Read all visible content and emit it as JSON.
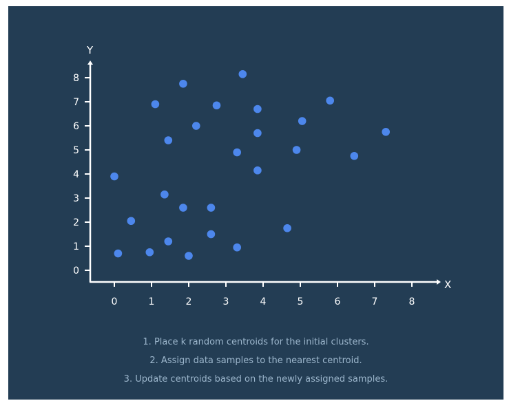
{
  "chart_data": {
    "type": "scatter",
    "xlabel": "X",
    "ylabel": "Y",
    "xlim": [
      -0.6,
      8.6
    ],
    "ylim": [
      -0.3,
      8.3
    ],
    "x_ticks": [
      "0",
      "1",
      "2",
      "3",
      "4",
      "5",
      "6",
      "7",
      "8"
    ],
    "y_ticks": [
      "0",
      "1",
      "2",
      "3",
      "4",
      "5",
      "6",
      "7",
      "8"
    ],
    "grid": false,
    "point_color": "#4d87ec",
    "background_color": "#233d54",
    "axis_color": "#ffffff",
    "points": [
      {
        "x": 0.0,
        "y": 3.9
      },
      {
        "x": 0.1,
        "y": 0.7
      },
      {
        "x": 0.45,
        "y": 2.05
      },
      {
        "x": 0.95,
        "y": 0.75
      },
      {
        "x": 1.1,
        "y": 6.9
      },
      {
        "x": 1.35,
        "y": 3.15
      },
      {
        "x": 1.45,
        "y": 5.4
      },
      {
        "x": 1.45,
        "y": 1.2
      },
      {
        "x": 1.85,
        "y": 7.75
      },
      {
        "x": 1.85,
        "y": 2.6
      },
      {
        "x": 2.0,
        "y": 0.6
      },
      {
        "x": 2.2,
        "y": 6.0
      },
      {
        "x": 2.6,
        "y": 2.6
      },
      {
        "x": 2.6,
        "y": 1.5
      },
      {
        "x": 2.75,
        "y": 6.85
      },
      {
        "x": 3.3,
        "y": 4.9
      },
      {
        "x": 3.3,
        "y": 0.95
      },
      {
        "x": 3.45,
        "y": 8.15
      },
      {
        "x": 3.85,
        "y": 6.7
      },
      {
        "x": 3.85,
        "y": 5.7
      },
      {
        "x": 3.85,
        "y": 4.15
      },
      {
        "x": 4.65,
        "y": 1.75
      },
      {
        "x": 4.9,
        "y": 5.0
      },
      {
        "x": 5.05,
        "y": 6.2
      },
      {
        "x": 5.8,
        "y": 7.05
      },
      {
        "x": 6.45,
        "y": 4.75
      },
      {
        "x": 7.3,
        "y": 5.75
      }
    ]
  },
  "captions": [
    "1. Place k random centroids for the initial clusters.",
    "2. Assign data samples to the nearest centroid.",
    "3. Update centroids based on the newly assigned samples."
  ]
}
